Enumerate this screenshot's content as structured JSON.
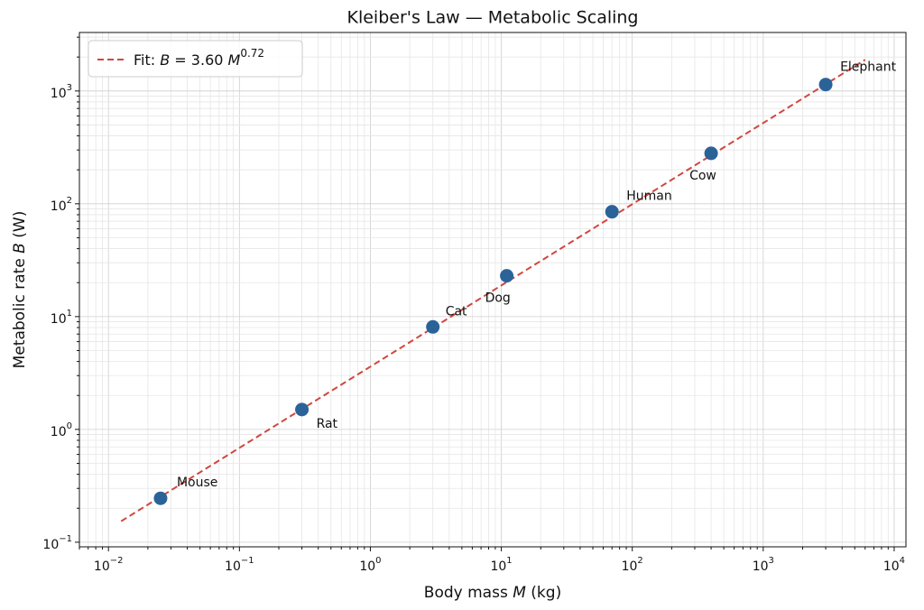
{
  "chart_data": {
    "type": "scatter",
    "title": "Kleiber's Law — Metabolic Scaling",
    "xlabel": [
      "Body mass ",
      "M",
      " (kg)"
    ],
    "ylabel": [
      "Metabolic rate ",
      "B",
      " (W)"
    ],
    "xscale": "log",
    "yscale": "log",
    "grid": true,
    "legend": "upper left",
    "xlim": [
      0.006,
      12300
    ],
    "ylim": [
      0.091,
      3300
    ],
    "xticks": [
      {
        "value": 0.01,
        "label": [
          "10",
          "−2"
        ]
      },
      {
        "value": 0.1,
        "label": [
          "10",
          "−1"
        ]
      },
      {
        "value": 1,
        "label": [
          "10",
          "0"
        ]
      },
      {
        "value": 10,
        "label": [
          "10",
          "1"
        ]
      },
      {
        "value": 100,
        "label": [
          "10",
          "2"
        ]
      },
      {
        "value": 1000,
        "label": [
          "10",
          "3"
        ]
      },
      {
        "value": 10000,
        "label": [
          "10",
          "4"
        ]
      }
    ],
    "yticks": [
      {
        "value": 0.1,
        "label": [
          "10",
          "−1"
        ]
      },
      {
        "value": 1,
        "label": [
          "10",
          "0"
        ]
      },
      {
        "value": 10,
        "label": [
          "10",
          "1"
        ]
      },
      {
        "value": 100,
        "label": [
          "10",
          "2"
        ]
      },
      {
        "value": 1000,
        "label": [
          "10",
          "3"
        ]
      }
    ],
    "series": [
      {
        "color": "#2b6399",
        "x": [
          0.025,
          0.3,
          3,
          11,
          70,
          400,
          3000
        ],
        "values": [
          0.245,
          1.5,
          8.1,
          23,
          85,
          280,
          1140
        ],
        "point_labels": [
          "Mouse",
          "Rat",
          "Cat",
          "Dog",
          "Human",
          "Cow",
          "Elephant"
        ]
      }
    ],
    "fit": {
      "label": [
        "Fit: ",
        "B",
        " = ",
        "3.60",
        " ",
        "M",
        "0.72"
      ],
      "coefficient": 3.6,
      "exponent": 0.72,
      "x_range": [
        0.0125,
        6000
      ],
      "color": "#d0473f"
    }
  }
}
